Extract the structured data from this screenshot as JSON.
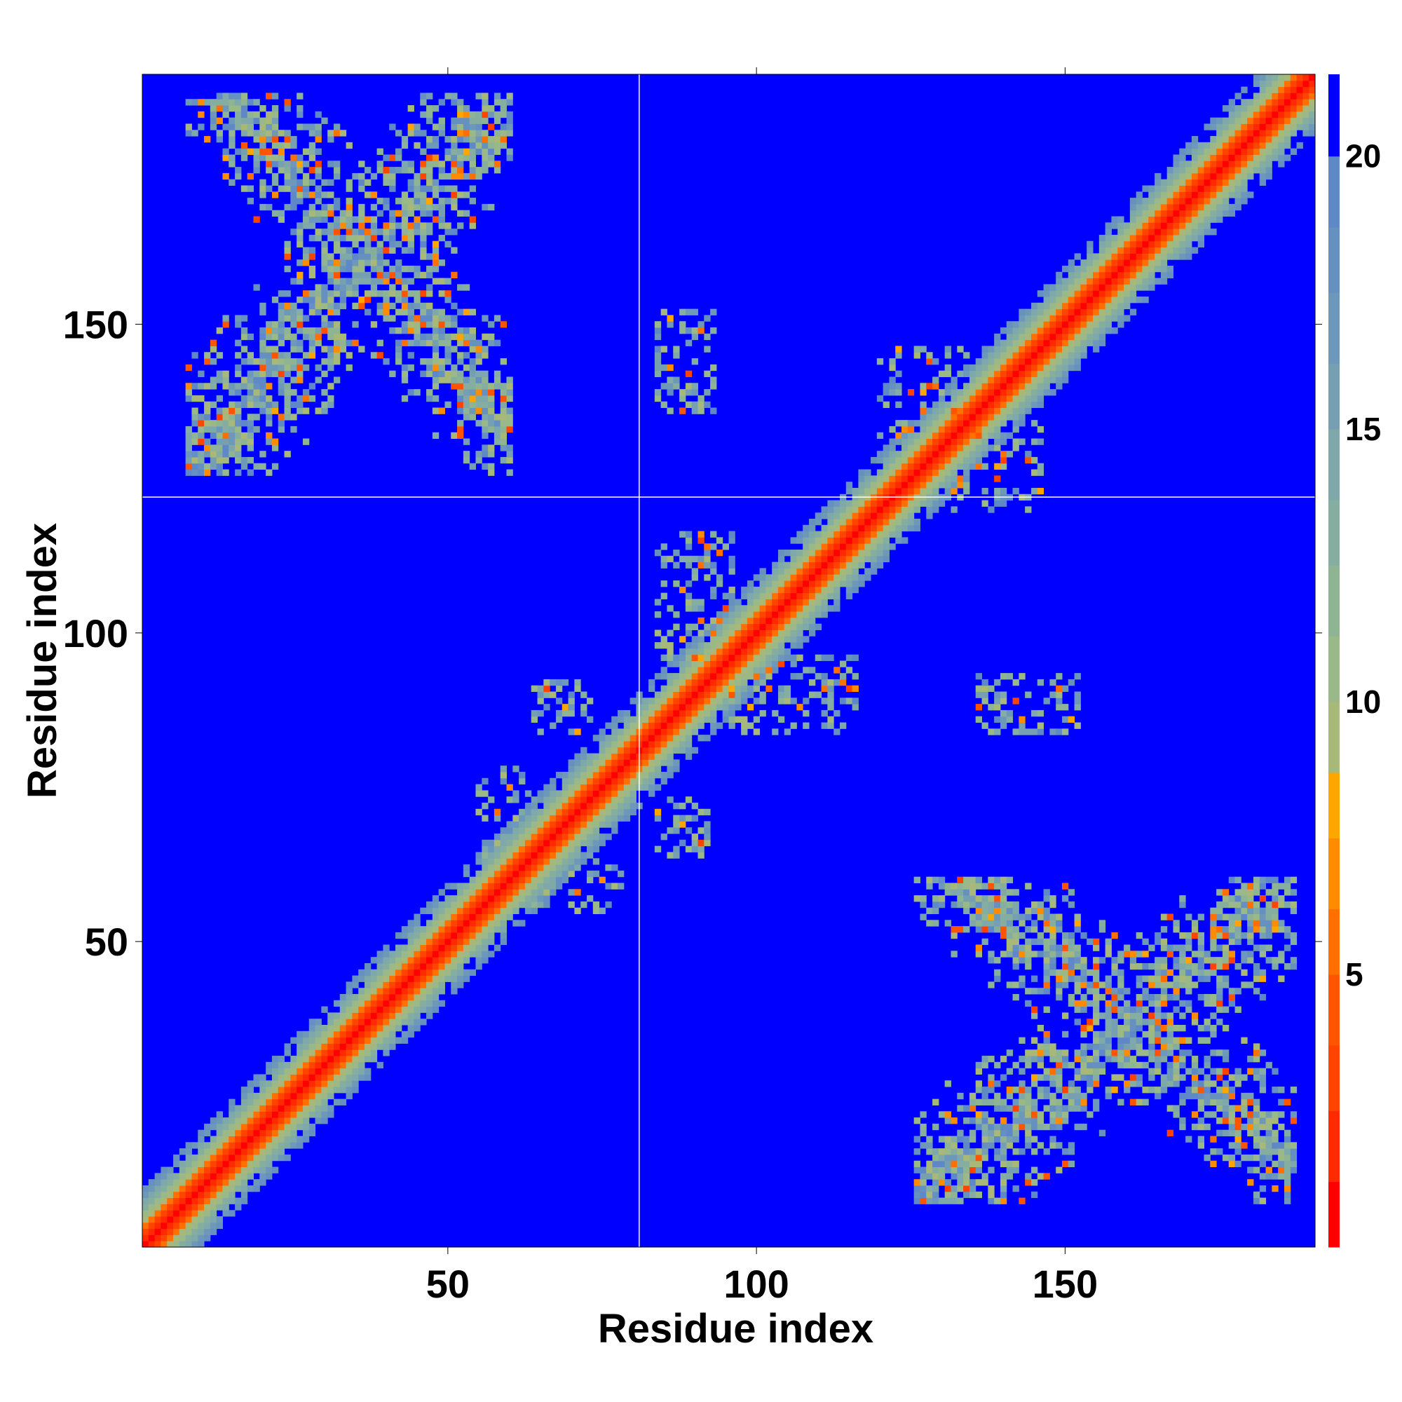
{
  "chart_data": {
    "type": "heatmap",
    "title": "",
    "xlabel": "Residue index",
    "ylabel": "Residue index",
    "xlim": [
      0.5,
      190.5
    ],
    "ylim": [
      0.5,
      190.5
    ],
    "n_residues": 190,
    "x_ticks": [
      50,
      100,
      150
    ],
    "y_ticks": [
      50,
      100,
      150
    ],
    "x_tick_labels": [
      "50",
      "100",
      "150"
    ],
    "y_tick_labels": [
      "50",
      "100",
      "150"
    ],
    "grid": false,
    "domain_boundaries": {
      "x": 81,
      "y": 122
    },
    "colorbar": {
      "location": "right",
      "min": 0,
      "max": 21.5,
      "ticks": [
        5,
        10,
        15,
        20
      ],
      "tick_labels": [
        "5",
        "10",
        "15",
        "20"
      ],
      "bands": [
        {
          "from": 0,
          "to": 1.2,
          "color": "#ff0000"
        },
        {
          "from": 1.2,
          "to": 2.5,
          "color": "#ff2a00"
        },
        {
          "from": 2.5,
          "to": 3.7,
          "color": "#ff4400"
        },
        {
          "from": 3.7,
          "to": 5.0,
          "color": "#ff5500"
        },
        {
          "from": 5.0,
          "to": 6.2,
          "color": "#ff7000"
        },
        {
          "from": 6.2,
          "to": 7.5,
          "color": "#ff8c00"
        },
        {
          "from": 7.5,
          "to": 8.7,
          "color": "#ffa500"
        },
        {
          "from": 8.7,
          "to": 10.0,
          "color": "#a8b878"
        },
        {
          "from": 10.0,
          "to": 11.2,
          "color": "#9ab888"
        },
        {
          "from": 11.2,
          "to": 12.5,
          "color": "#8fb494"
        },
        {
          "from": 12.5,
          "to": 13.7,
          "color": "#86aea0"
        },
        {
          "from": 13.7,
          "to": 15.0,
          "color": "#7ea8aa"
        },
        {
          "from": 15.0,
          "to": 16.2,
          "color": "#76a0b2"
        },
        {
          "from": 16.2,
          "to": 17.5,
          "color": "#6e98ba"
        },
        {
          "from": 17.5,
          "to": 18.7,
          "color": "#6690c0"
        },
        {
          "from": 18.7,
          "to": 20.0,
          "color": "#5f88c6"
        },
        {
          "from": 20.0,
          "to": 21.5,
          "color": "#0000ff"
        }
      ]
    },
    "background_value": 21.5,
    "diagonal_band": {
      "core_width": 2,
      "orange_width": 4,
      "band_half_width": 8
    },
    "contact_regions": [
      {
        "name": "x-shaped contacts between residues 8-60 and 126-187",
        "x_range": [
          8,
          60
        ],
        "y_range": [
          126,
          187
        ],
        "density": "high"
      },
      {
        "name": "contacts near residues 84-93 / 136-152",
        "x_range": [
          84,
          93
        ],
        "y_range": [
          136,
          152
        ],
        "density": "low"
      },
      {
        "name": "contacts near residues 65-72 / 86-92",
        "x_range": [
          65,
          72
        ],
        "y_range": [
          86,
          92
        ],
        "density": "low"
      },
      {
        "name": "contacts near residues 84-92 / 65-72",
        "x_range": [
          84,
          92
        ],
        "y_range": [
          65,
          72
        ],
        "density": "low"
      },
      {
        "name": "contacts near residues 139-151 / 84-93",
        "x_range": [
          139,
          151
        ],
        "y_range": [
          84,
          93
        ],
        "density": "low"
      }
    ]
  }
}
